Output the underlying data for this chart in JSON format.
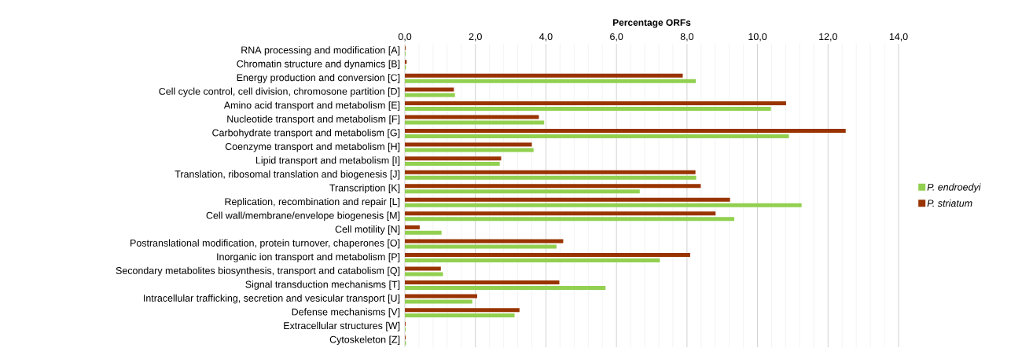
{
  "chart_data": {
    "type": "bar",
    "orientation": "horizontal",
    "xlabel": "Percentage ORFs",
    "categories": [
      "RNA processing and modification [A]",
      "Chromatin structure and dynamics [B]",
      "Energy production and conversion [C]",
      "Cell cycle control, cell division, chromosone partition [D]",
      "Amino acid transport and metabolism [E]",
      "Nucleotide transport and metabolism [F]",
      "Carbohydrate transport and metabolism [G]",
      "Coenzyme transport and metabolism [H]",
      "Lipid transport and metabolism [I]",
      "Translation, ribosomal translation and biogenesis [J]",
      "Transcription [K]",
      "Replication, recombination and repair [L]",
      "Cell wall/membrane/envelope biogenesis [M]",
      "Cell motility [N]",
      "Postranslational modification, protein turnover, chaperones [O]",
      "Inorganic ion transport and metabolism [P]",
      "Secondary metabolites biosynthesis, transport and catabolism [Q]",
      "Signal transduction mechanisms [T]",
      "Intracellular trafficking, secretion and vesicular transport [U]",
      "Defense mechanisms [V]",
      "Extracellular structures [W]",
      "Cytoskeleton [Z]"
    ],
    "series": [
      {
        "name": "*P. endroedyi*",
        "color": "#92d050",
        "values": [
          0.02,
          0.03,
          8.25,
          1.42,
          10.38,
          3.95,
          10.89,
          3.65,
          2.69,
          8.26,
          6.66,
          11.25,
          9.34,
          1.04,
          4.3,
          7.23,
          1.08,
          5.69,
          1.91,
          3.11,
          0.02,
          0.03
        ]
      },
      {
        "name": "*P. striatum*",
        "color": "#993300",
        "values": [
          0.02,
          0.05,
          7.88,
          1.39,
          10.81,
          3.8,
          12.5,
          3.6,
          2.73,
          8.24,
          8.39,
          9.22,
          8.81,
          0.42,
          4.49,
          8.09,
          1.02,
          4.38,
          2.05,
          3.25,
          0.02,
          0.02
        ]
      }
    ],
    "xlim": [
      0,
      14
    ],
    "xticks": [
      {
        "value": 0,
        "label": "0,0"
      },
      {
        "value": 0.4,
        "label": null
      },
      {
        "value": 0.8,
        "label": null
      },
      {
        "value": 1.2,
        "label": null
      },
      {
        "value": 1.6,
        "label": null
      },
      {
        "value": 2,
        "label": "2,0"
      },
      {
        "value": 2.4,
        "label": null
      },
      {
        "value": 2.8,
        "label": null
      },
      {
        "value": 3.2,
        "label": null
      },
      {
        "value": 3.6,
        "label": null
      },
      {
        "value": 4,
        "label": "4,0"
      },
      {
        "value": 4.4,
        "label": null
      },
      {
        "value": 4.8,
        "label": null
      },
      {
        "value": 5.2,
        "label": null
      },
      {
        "value": 5.6,
        "label": null
      },
      {
        "value": 6,
        "label": "6,0"
      },
      {
        "value": 6.4,
        "label": null
      },
      {
        "value": 6.8,
        "label": null
      },
      {
        "value": 7.2,
        "label": null
      },
      {
        "value": 7.6,
        "label": null
      },
      {
        "value": 8,
        "label": "8,0"
      },
      {
        "value": 8.4,
        "label": null
      },
      {
        "value": 8.8,
        "label": null
      },
      {
        "value": 9.2,
        "label": null
      },
      {
        "value": 9.6,
        "label": null
      },
      {
        "value": 10,
        "label": "10,0"
      },
      {
        "value": 10.4,
        "label": null
      },
      {
        "value": 10.8,
        "label": null
      },
      {
        "value": 11.2,
        "label": null
      },
      {
        "value": 11.6,
        "label": null
      },
      {
        "value": 12,
        "label": "12,0"
      },
      {
        "value": 12.4,
        "label": null
      },
      {
        "value": 12.8,
        "label": null
      },
      {
        "value": 13.2,
        "label": null
      },
      {
        "value": 13.6,
        "label": null
      },
      {
        "value": 14,
        "label": "14,0"
      }
    ],
    "grid": "x",
    "legend": "right"
  }
}
